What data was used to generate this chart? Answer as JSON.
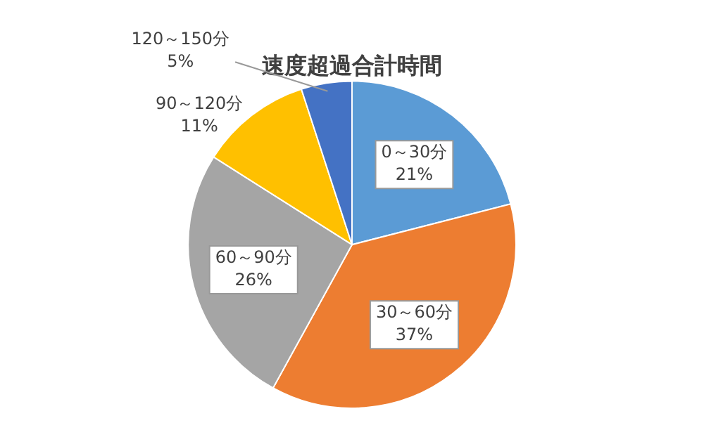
{
  "chart_data": {
    "type": "pie",
    "title": "速度超過合計時間",
    "categories": [
      "0～30分",
      "30～60分",
      "60～90分",
      "90～120分",
      "120～150分"
    ],
    "values": [
      21,
      37,
      26,
      11,
      5
    ],
    "colors": [
      "#5b9bd5",
      "#ed7d31",
      "#a5a5a5",
      "#ffc000",
      "#4472c4"
    ],
    "value_labels": [
      "21%",
      "37%",
      "26%",
      "11%",
      "5%"
    ],
    "legend": false
  }
}
